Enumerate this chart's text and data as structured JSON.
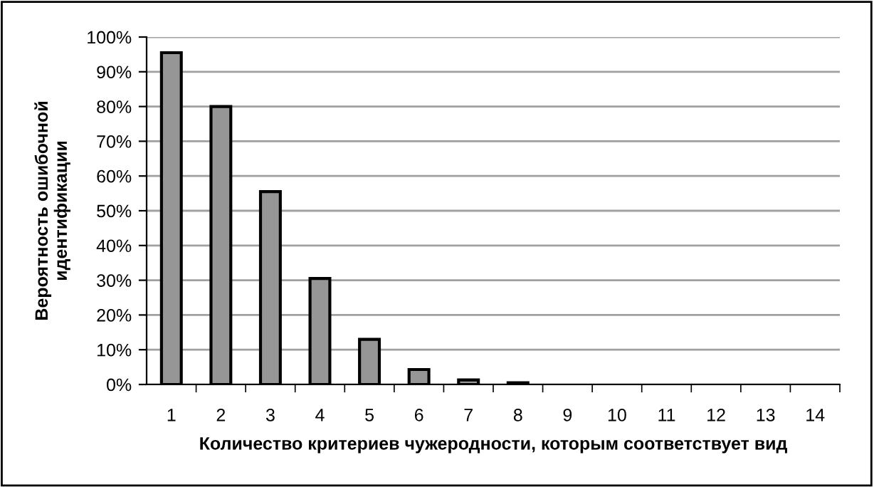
{
  "chart_data": {
    "type": "bar",
    "xlabel": "Количество критериев чужеродности, которым соответствует вид",
    "ylabel": "Вероятность ошибочной\nидентификации",
    "categories": [
      "1",
      "2",
      "3",
      "4",
      "5",
      "6",
      "7",
      "8",
      "9",
      "10",
      "11",
      "12",
      "13",
      "14"
    ],
    "values": [
      95.5,
      80,
      55.5,
      30.5,
      13,
      4.3,
      1.3,
      0.5,
      0,
      0,
      0,
      0,
      0,
      0
    ],
    "color": "#969696",
    "ylim": [
      0,
      100
    ],
    "yticks": [
      {
        "value": 0,
        "label": "0%"
      },
      {
        "value": 10,
        "label": "10%"
      },
      {
        "value": 20,
        "label": "20%"
      },
      {
        "value": 30,
        "label": "30%"
      },
      {
        "value": 40,
        "label": "40%"
      },
      {
        "value": 50,
        "label": "50%"
      },
      {
        "value": 60,
        "label": "60%"
      },
      {
        "value": 70,
        "label": "70%"
      },
      {
        "value": 80,
        "label": "80%"
      },
      {
        "value": 90,
        "label": "90%"
      },
      {
        "value": 100,
        "label": "100%"
      }
    ],
    "grid": "y"
  }
}
